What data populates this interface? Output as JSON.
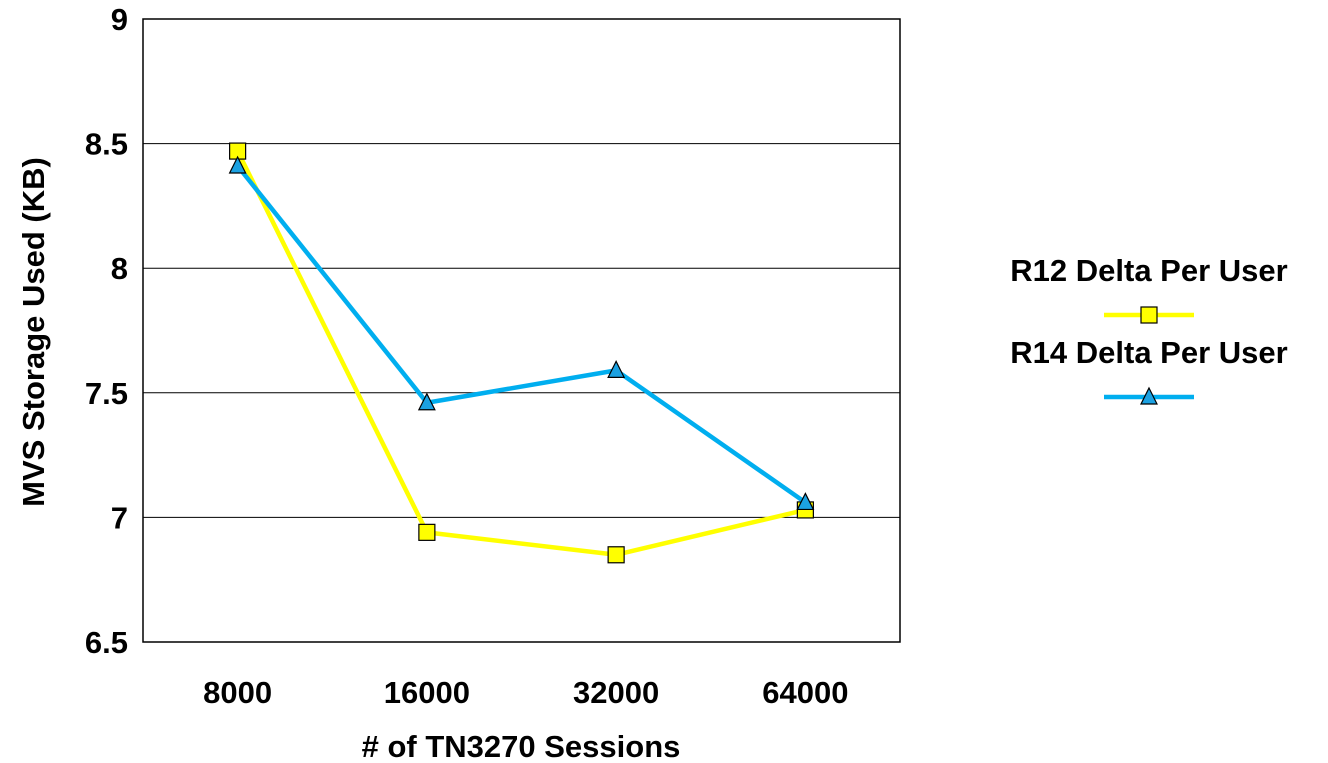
{
  "chart_data": {
    "type": "line",
    "title": "",
    "xlabel": "# of TN3270 Sessions",
    "ylabel": "MVS Storage Used (KB)",
    "categories": [
      "8000",
      "16000",
      "32000",
      "64000"
    ],
    "ylim": [
      6.5,
      9
    ],
    "yticks": [
      "6.5",
      "7",
      "7.5",
      "8",
      "8.5",
      "9"
    ],
    "grid": true,
    "legend_position": "right",
    "series": [
      {
        "name": "R12 Delta Per User",
        "values": [
          8.47,
          6.94,
          6.85,
          7.03
        ],
        "color": "#ffff00",
        "marker": "square",
        "marker_color": "#ffff00"
      },
      {
        "name": "R14 Delta Per User",
        "values": [
          8.41,
          7.46,
          7.59,
          7.06
        ],
        "color": "#00aeef",
        "marker": "triangle",
        "marker_color": "#1ba1e2"
      }
    ]
  }
}
